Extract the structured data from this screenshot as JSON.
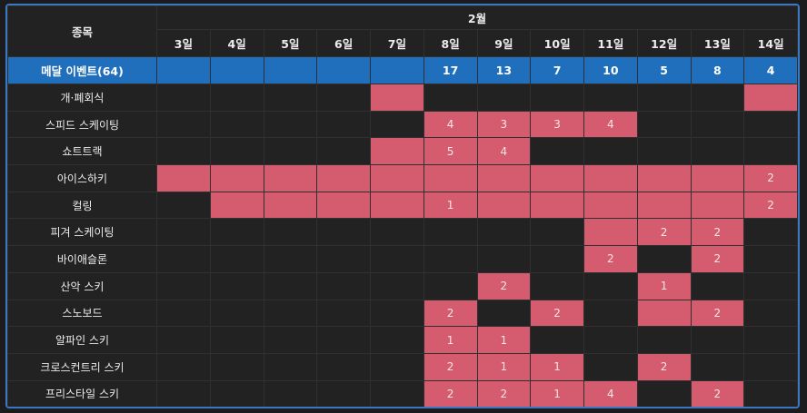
{
  "header": {
    "sport_label": "종목",
    "month_label": "2월",
    "days": [
      "3일",
      "4일",
      "5일",
      "6일",
      "7일",
      "8일",
      "9일",
      "10일",
      "11일",
      "12일",
      "13일",
      "14일"
    ]
  },
  "medal_row": {
    "label": "메달 이벤트(64)",
    "values": [
      "",
      "",
      "",
      "",
      "",
      "17",
      "13",
      "7",
      "10",
      "5",
      "8",
      "4"
    ]
  },
  "highlight_color": "#d45c6e",
  "rows": [
    {
      "name": "개·폐회식",
      "cells": [
        {
          "on": false,
          "v": ""
        },
        {
          "on": false,
          "v": ""
        },
        {
          "on": false,
          "v": ""
        },
        {
          "on": false,
          "v": ""
        },
        {
          "on": true,
          "v": ""
        },
        {
          "on": false,
          "v": ""
        },
        {
          "on": false,
          "v": ""
        },
        {
          "on": false,
          "v": ""
        },
        {
          "on": false,
          "v": ""
        },
        {
          "on": false,
          "v": ""
        },
        {
          "on": false,
          "v": ""
        },
        {
          "on": true,
          "v": ""
        }
      ]
    },
    {
      "name": "스피드 스케이팅",
      "cells": [
        {
          "on": false,
          "v": ""
        },
        {
          "on": false,
          "v": ""
        },
        {
          "on": false,
          "v": ""
        },
        {
          "on": false,
          "v": ""
        },
        {
          "on": false,
          "v": ""
        },
        {
          "on": true,
          "v": "4"
        },
        {
          "on": true,
          "v": "3"
        },
        {
          "on": true,
          "v": "3"
        },
        {
          "on": true,
          "v": "4"
        },
        {
          "on": false,
          "v": ""
        },
        {
          "on": false,
          "v": ""
        },
        {
          "on": false,
          "v": ""
        }
      ]
    },
    {
      "name": "쇼트트랙",
      "cells": [
        {
          "on": false,
          "v": ""
        },
        {
          "on": false,
          "v": ""
        },
        {
          "on": false,
          "v": ""
        },
        {
          "on": false,
          "v": ""
        },
        {
          "on": true,
          "v": ""
        },
        {
          "on": true,
          "v": "5"
        },
        {
          "on": true,
          "v": "4"
        },
        {
          "on": false,
          "v": ""
        },
        {
          "on": false,
          "v": ""
        },
        {
          "on": false,
          "v": ""
        },
        {
          "on": false,
          "v": ""
        },
        {
          "on": false,
          "v": ""
        }
      ]
    },
    {
      "name": "아이스하키",
      "cells": [
        {
          "on": true,
          "v": ""
        },
        {
          "on": true,
          "v": ""
        },
        {
          "on": true,
          "v": ""
        },
        {
          "on": true,
          "v": ""
        },
        {
          "on": true,
          "v": ""
        },
        {
          "on": true,
          "v": ""
        },
        {
          "on": true,
          "v": ""
        },
        {
          "on": true,
          "v": ""
        },
        {
          "on": true,
          "v": ""
        },
        {
          "on": true,
          "v": ""
        },
        {
          "on": true,
          "v": ""
        },
        {
          "on": true,
          "v": "2"
        }
      ]
    },
    {
      "name": "컬링",
      "cells": [
        {
          "on": false,
          "v": ""
        },
        {
          "on": true,
          "v": ""
        },
        {
          "on": true,
          "v": ""
        },
        {
          "on": true,
          "v": ""
        },
        {
          "on": true,
          "v": ""
        },
        {
          "on": true,
          "v": "1"
        },
        {
          "on": true,
          "v": ""
        },
        {
          "on": true,
          "v": ""
        },
        {
          "on": true,
          "v": ""
        },
        {
          "on": true,
          "v": ""
        },
        {
          "on": true,
          "v": ""
        },
        {
          "on": true,
          "v": "2"
        }
      ]
    },
    {
      "name": "피겨 스케이팅",
      "cells": [
        {
          "on": false,
          "v": ""
        },
        {
          "on": false,
          "v": ""
        },
        {
          "on": false,
          "v": ""
        },
        {
          "on": false,
          "v": ""
        },
        {
          "on": false,
          "v": ""
        },
        {
          "on": false,
          "v": ""
        },
        {
          "on": false,
          "v": ""
        },
        {
          "on": false,
          "v": ""
        },
        {
          "on": true,
          "v": ""
        },
        {
          "on": true,
          "v": "2"
        },
        {
          "on": true,
          "v": "2"
        },
        {
          "on": false,
          "v": ""
        }
      ]
    },
    {
      "name": "바이애슬론",
      "cells": [
        {
          "on": false,
          "v": ""
        },
        {
          "on": false,
          "v": ""
        },
        {
          "on": false,
          "v": ""
        },
        {
          "on": false,
          "v": ""
        },
        {
          "on": false,
          "v": ""
        },
        {
          "on": false,
          "v": ""
        },
        {
          "on": false,
          "v": ""
        },
        {
          "on": false,
          "v": ""
        },
        {
          "on": true,
          "v": "2"
        },
        {
          "on": false,
          "v": ""
        },
        {
          "on": true,
          "v": "2"
        },
        {
          "on": false,
          "v": ""
        }
      ]
    },
    {
      "name": "산악 스키",
      "cells": [
        {
          "on": false,
          "v": ""
        },
        {
          "on": false,
          "v": ""
        },
        {
          "on": false,
          "v": ""
        },
        {
          "on": false,
          "v": ""
        },
        {
          "on": false,
          "v": ""
        },
        {
          "on": false,
          "v": ""
        },
        {
          "on": true,
          "v": "2"
        },
        {
          "on": false,
          "v": ""
        },
        {
          "on": false,
          "v": ""
        },
        {
          "on": true,
          "v": "1"
        },
        {
          "on": false,
          "v": ""
        },
        {
          "on": false,
          "v": ""
        }
      ]
    },
    {
      "name": "스노보드",
      "cells": [
        {
          "on": false,
          "v": ""
        },
        {
          "on": false,
          "v": ""
        },
        {
          "on": false,
          "v": ""
        },
        {
          "on": false,
          "v": ""
        },
        {
          "on": false,
          "v": ""
        },
        {
          "on": true,
          "v": "2"
        },
        {
          "on": false,
          "v": ""
        },
        {
          "on": true,
          "v": "2"
        },
        {
          "on": false,
          "v": ""
        },
        {
          "on": true,
          "v": ""
        },
        {
          "on": true,
          "v": "2"
        },
        {
          "on": false,
          "v": ""
        }
      ]
    },
    {
      "name": "알파인 스키",
      "cells": [
        {
          "on": false,
          "v": ""
        },
        {
          "on": false,
          "v": ""
        },
        {
          "on": false,
          "v": ""
        },
        {
          "on": false,
          "v": ""
        },
        {
          "on": false,
          "v": ""
        },
        {
          "on": true,
          "v": "1"
        },
        {
          "on": true,
          "v": "1"
        },
        {
          "on": false,
          "v": ""
        },
        {
          "on": false,
          "v": ""
        },
        {
          "on": false,
          "v": ""
        },
        {
          "on": false,
          "v": ""
        },
        {
          "on": false,
          "v": ""
        }
      ]
    },
    {
      "name": "크로스컨트리 스키",
      "cells": [
        {
          "on": false,
          "v": ""
        },
        {
          "on": false,
          "v": ""
        },
        {
          "on": false,
          "v": ""
        },
        {
          "on": false,
          "v": ""
        },
        {
          "on": false,
          "v": ""
        },
        {
          "on": true,
          "v": "2"
        },
        {
          "on": true,
          "v": "1"
        },
        {
          "on": true,
          "v": "1"
        },
        {
          "on": false,
          "v": ""
        },
        {
          "on": true,
          "v": "2"
        },
        {
          "on": false,
          "v": ""
        },
        {
          "on": false,
          "v": ""
        }
      ]
    },
    {
      "name": "프리스타일 스키",
      "cells": [
        {
          "on": false,
          "v": ""
        },
        {
          "on": false,
          "v": ""
        },
        {
          "on": false,
          "v": ""
        },
        {
          "on": false,
          "v": ""
        },
        {
          "on": false,
          "v": ""
        },
        {
          "on": true,
          "v": "2"
        },
        {
          "on": true,
          "v": "2"
        },
        {
          "on": true,
          "v": "1"
        },
        {
          "on": true,
          "v": "4"
        },
        {
          "on": false,
          "v": ""
        },
        {
          "on": true,
          "v": "2"
        },
        {
          "on": false,
          "v": ""
        }
      ]
    }
  ]
}
